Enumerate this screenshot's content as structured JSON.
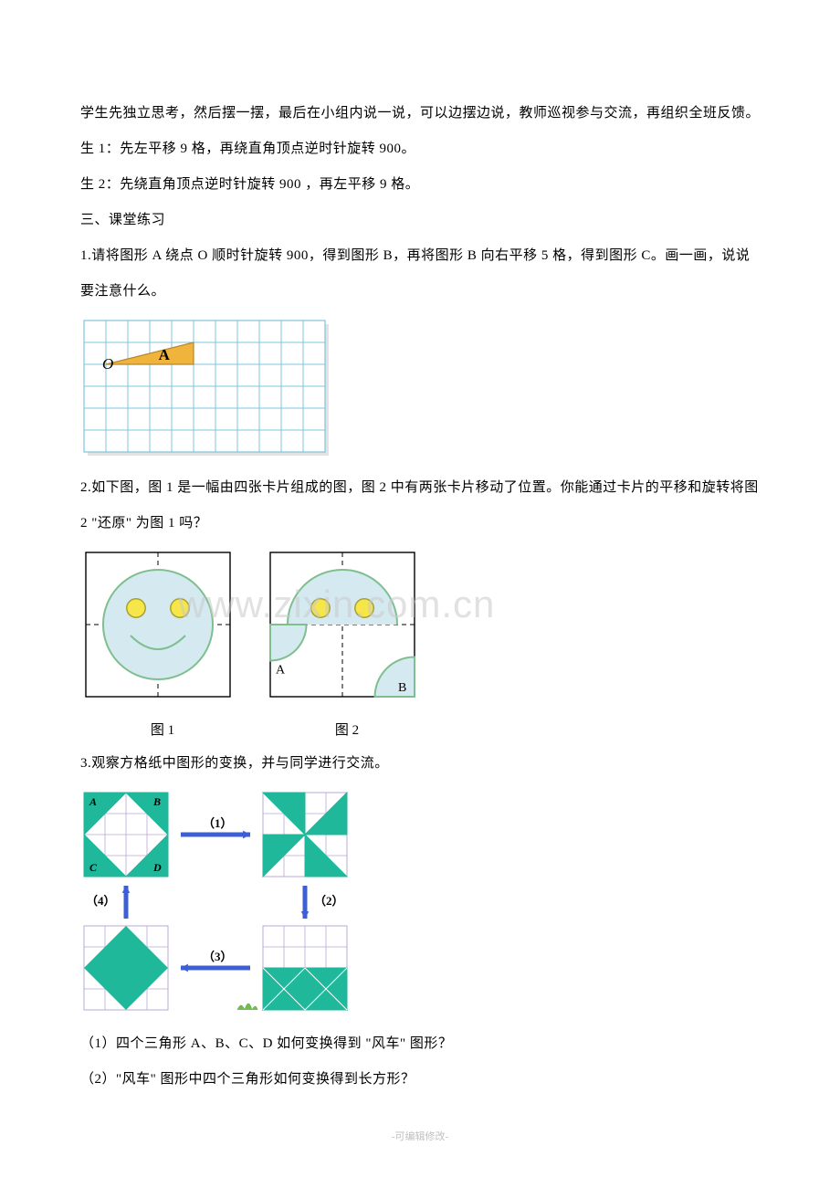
{
  "text": {
    "p1": "学生先独立思考，然后摆一摆，最后在小组内说一说，可以边摆边说，教师巡视参与交流，再组织全班反馈。",
    "p2": "生 1：先左平移 9 格，再绕直角顶点逆时针旋转 900。",
    "p3": "生 2：先绕直角顶点逆时针旋转 900 ，再左平移 9 格。",
    "p4": "三、课堂练习",
    "p5": "1.请将图形 A 绕点 O 顺时针旋转 900，得到图形 B，再将图形 B 向右平移 5 格，得到图形 C。画一画，说说要注意什么。",
    "p6": "2.如下图，图 1 是一幅由四张卡片组成的图，图 2 中有两张卡片移动了位置。你能通过卡片的平移和旋转将图 2 \"还原\" 为图 1 吗？",
    "p7": "3.观察方格纸中图形的变换，并与同学进行交流。",
    "p8": "（1）四个三角形 A、B、C、D 如何变换得到 \"风车\" 图形？",
    "p9": "（2）\"风车\" 图形中四个三角形如何变换得到长方形？",
    "footer": "-可编辑修改-"
  },
  "fig1": {
    "grid_color": "#7ec5dc",
    "bg": "#ffffff",
    "cell": 24,
    "cols": 11,
    "rows": 6,
    "tri_fill": "#f0b43c",
    "tri_stroke": "#b5862e",
    "label_O": "O",
    "label_A": "A",
    "label_font": "italic 17px 'Times New Roman', serif",
    "shadow": "#8a8a8a"
  },
  "fig2": {
    "border": "#000000",
    "dash": "#000000",
    "face_stroke": "#7fbf8f",
    "face_fill": "#d5e9f0",
    "eye_fill": "#f7e64a",
    "eye_stroke": "#a8a030",
    "size": 170,
    "caption1": "图 1",
    "caption2": "图 2",
    "label_A": "A",
    "label_B": "B"
  },
  "fig3": {
    "grid": "#b8a8d5",
    "teal": "#1fb89a",
    "arrow": "#3d5fd6",
    "cell": 23,
    "labels": {
      "A": "A",
      "B": "B",
      "C": "C",
      "D": "D",
      "n1": "（1）",
      "n2": "（2）",
      "n3": "（3）",
      "n4": "（4）"
    }
  },
  "watermark": "www.zixin.com.cn"
}
